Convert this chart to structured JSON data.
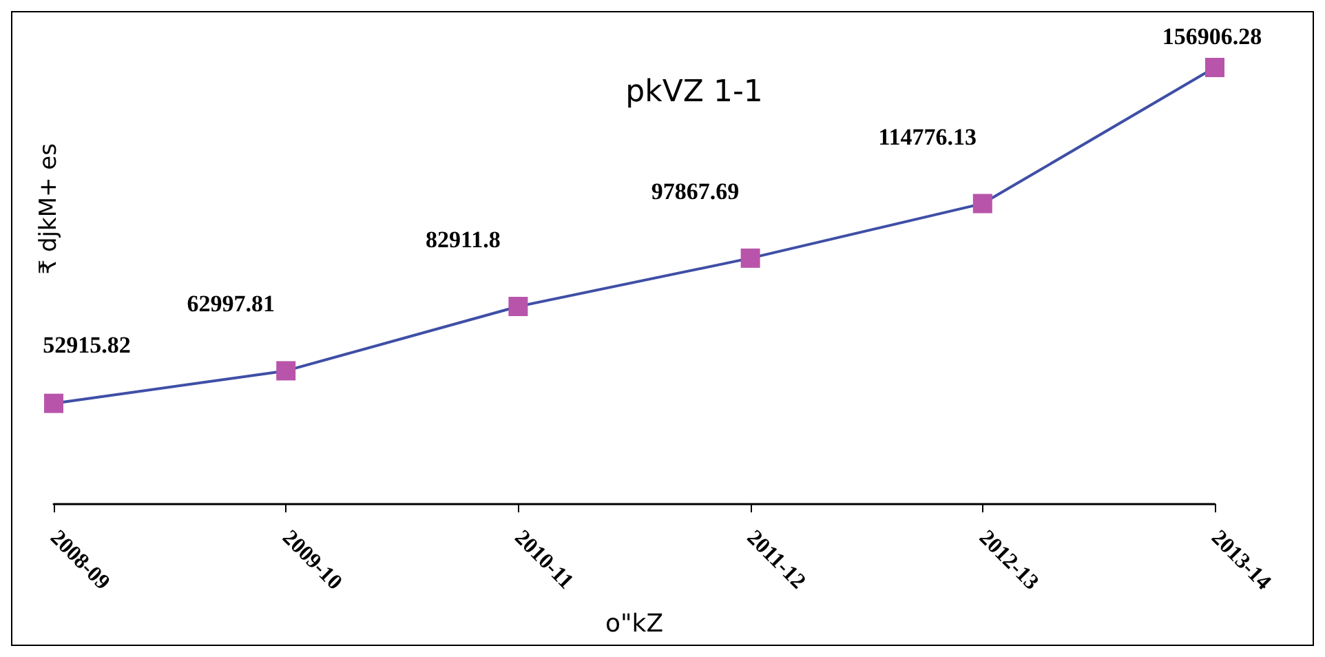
{
  "chart_data": {
    "type": "line",
    "title": "pkVZ 1-1",
    "xlabel": "o\"kZ",
    "ylabel": "₹ djkM+ es",
    "categories": [
      "2008-09",
      "2009-10",
      "2010-11",
      "2011-12",
      "2012-13",
      "2013-14"
    ],
    "series": [
      {
        "color": "#3f4fa6",
        "values": [
          52915.82,
          62997.81,
          82911.8,
          97867.69,
          114776.13,
          156906.28
        ]
      }
    ],
    "marker": "square",
    "data_labels": true
  }
}
